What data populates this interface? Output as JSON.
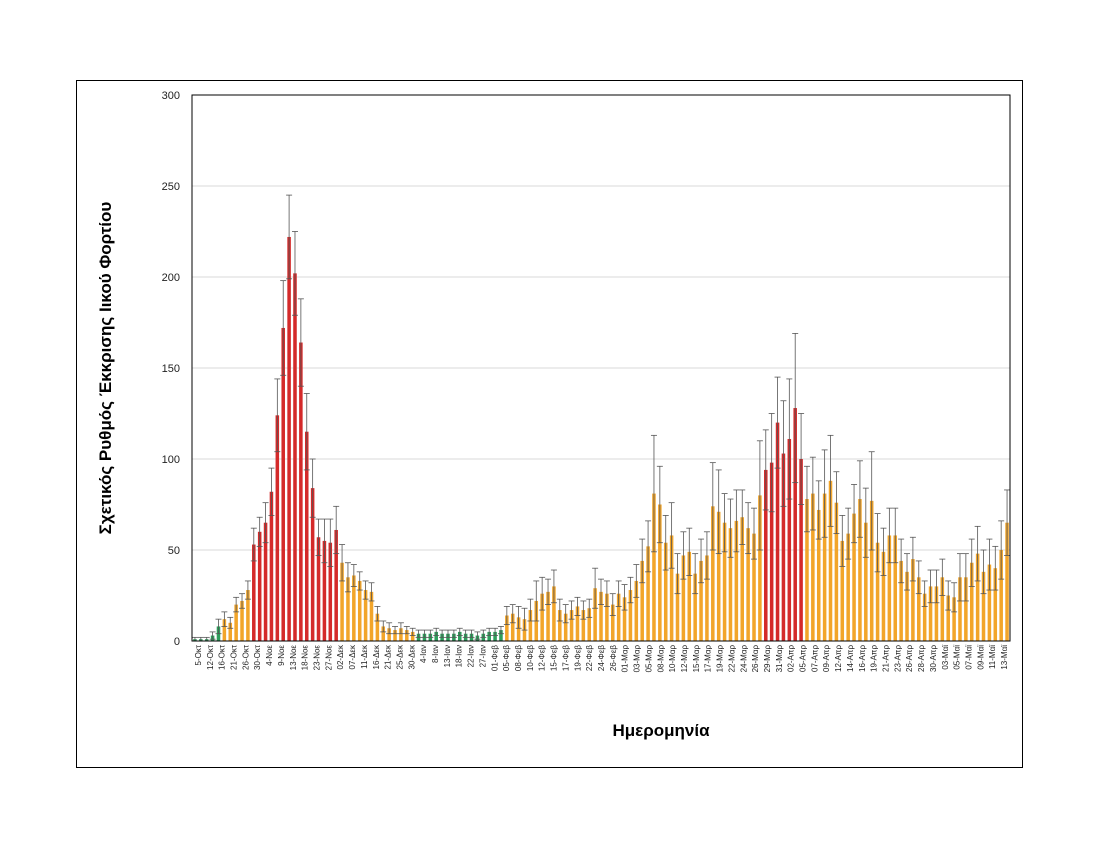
{
  "chart_data": {
    "type": "bar",
    "xlabel": "Ημερομηνία",
    "ylabel": "Σχετικός Ρυθμός Έκκρισης Ιικού Φορτίου",
    "ylim": [
      0,
      300
    ],
    "yticks": [
      0,
      50,
      100,
      150,
      200,
      250,
      300
    ],
    "grid": true,
    "colors": {
      "low": "#2e9e5b",
      "medium": "#f2a52a",
      "high": "#d42a2a",
      "errorbar": "#555555",
      "grid": "#d9d9d9"
    },
    "x_labels": [
      "5-Οκτ",
      "12-Οκτ",
      "16-Οκτ",
      "21-Οκτ",
      "26-Οκτ",
      "30-Οκτ",
      "4-Νοε",
      "9-Νοε",
      "13-Νοε",
      "18-Νοε",
      "23-Νοε",
      "27-Νοε",
      "02-Δεκ",
      "07-Δεκ",
      "11-Δεκ",
      "16-Δεκ",
      "21-Δεκ",
      "25-Δεκ",
      "30-Δεκ",
      "4-Ιαν",
      "8-Ιαν",
      "13-Ιαν",
      "18-Ιαν",
      "22-Ιαν",
      "27-Ιαν",
      "01-Φεβ",
      "05-Φεβ",
      "08-Φεβ",
      "10-Φεβ",
      "12-Φεβ",
      "15-Φεβ",
      "17-Φεβ",
      "19-Φεβ",
      "22-Φεβ",
      "24-Φεβ",
      "26-Φεβ",
      "01-Μαρ",
      "03-Μαρ",
      "05-Μαρ",
      "08-Μαρ",
      "10-Μαρ",
      "12-Μαρ",
      "15-Μαρ",
      "17-Μαρ",
      "19-Μαρ",
      "22-Μαρ",
      "24-Μαρ",
      "26-Μαρ",
      "29-Μαρ",
      "31-Μαρ",
      "02-Απρ",
      "05-Απρ",
      "07-Απρ",
      "09-Απρ",
      "12-Απρ",
      "14-Απρ",
      "16-Απρ",
      "19-Απρ",
      "21-Απρ",
      "23-Απρ",
      "26-Απρ",
      "28-Απρ",
      "30-Απρ",
      "03-Μαϊ",
      "05-Μαϊ",
      "07-Μαϊ",
      "09-Μαϊ",
      "11-Μαϊ",
      "13-Μαϊ"
    ],
    "values": [
      1,
      1,
      1,
      3,
      8,
      12,
      10,
      20,
      22,
      28,
      53,
      60,
      65,
      82,
      124,
      172,
      222,
      202,
      164,
      115,
      84,
      57,
      55,
      54,
      61,
      43,
      35,
      36,
      33,
      28,
      27,
      15,
      8,
      7,
      6,
      7,
      6,
      5,
      4,
      4,
      4,
      5,
      4,
      4,
      4,
      5,
      4,
      4,
      3,
      4,
      5,
      5,
      6,
      14,
      15,
      13,
      12,
      17,
      22,
      26,
      27,
      30,
      17,
      15,
      17,
      19,
      17,
      18,
      29,
      27,
      26,
      20,
      26,
      24,
      28,
      33,
      44,
      52,
      81,
      75,
      54,
      58,
      37,
      47,
      49,
      37,
      44,
      47,
      74,
      71,
      65,
      62,
      66,
      68,
      62,
      59,
      80,
      94,
      98,
      120,
      103,
      111,
      128,
      100,
      78,
      81,
      72,
      81,
      88,
      76,
      55,
      59,
      70,
      78,
      65,
      77,
      54,
      49,
      58,
      58,
      44,
      38,
      45,
      35,
      26,
      30,
      30,
      35,
      25,
      24,
      35,
      35,
      43,
      48,
      38,
      42,
      40,
      50,
      65
    ],
    "errors": [
      1,
      1,
      1,
      2,
      4,
      4,
      3,
      4,
      4,
      5,
      9,
      8,
      11,
      13,
      20,
      26,
      23,
      23,
      24,
      21,
      16,
      10,
      12,
      13,
      13,
      10,
      8,
      6,
      5,
      5,
      5,
      4,
      3,
      3,
      2,
      3,
      2,
      2,
      2,
      2,
      2,
      2,
      2,
      2,
      2,
      2,
      2,
      2,
      2,
      2,
      2,
      2,
      2,
      5,
      5,
      6,
      6,
      6,
      11,
      9,
      7,
      9,
      6,
      5,
      5,
      5,
      5,
      5,
      11,
      7,
      7,
      6,
      7,
      7,
      7,
      9,
      12,
      14,
      32,
      21,
      15,
      18,
      11,
      13,
      13,
      11,
      12,
      13,
      24,
      23,
      16,
      16,
      17,
      15,
      14,
      14,
      30,
      22,
      27,
      25,
      29,
      33,
      41,
      25,
      18,
      20,
      16,
      24,
      25,
      17,
      14,
      14,
      16,
      21,
      19,
      27,
      16,
      13,
      15,
      15,
      12,
      10,
      12,
      9,
      7,
      9,
      9,
      10,
      8,
      8,
      13,
      13,
      13,
      15,
      12,
      14,
      12,
      16,
      18
    ],
    "levels": [
      "L",
      "L",
      "L",
      "L",
      "L",
      "M",
      "M",
      "M",
      "M",
      "M",
      "H",
      "H",
      "H",
      "H",
      "H",
      "H",
      "H",
      "H",
      "H",
      "H",
      "H",
      "H",
      "H",
      "H",
      "H",
      "M",
      "M",
      "M",
      "M",
      "M",
      "M",
      "M",
      "M",
      "M",
      "M",
      "M",
      "M",
      "M",
      "L",
      "L",
      "L",
      "L",
      "L",
      "L",
      "L",
      "L",
      "L",
      "L",
      "L",
      "L",
      "L",
      "L",
      "L",
      "M",
      "M",
      "M",
      "M",
      "M",
      "M",
      "M",
      "M",
      "M",
      "M",
      "M",
      "M",
      "M",
      "M",
      "M",
      "M",
      "M",
      "M",
      "M",
      "M",
      "M",
      "M",
      "M",
      "M",
      "M",
      "M",
      "M",
      "M",
      "M",
      "M",
      "M",
      "M",
      "M",
      "M",
      "M",
      "M",
      "M",
      "M",
      "M",
      "M",
      "M",
      "M",
      "M",
      "M",
      "H",
      "H",
      "H",
      "H",
      "H",
      "H",
      "H",
      "M",
      "M",
      "M",
      "M",
      "M",
      "M",
      "M",
      "M",
      "M",
      "M",
      "M",
      "M",
      "M",
      "M",
      "M",
      "M",
      "M",
      "M",
      "M",
      "M",
      "M",
      "M",
      "M",
      "M",
      "M",
      "M",
      "M",
      "M",
      "M",
      "M",
      "M",
      "M",
      "M",
      "M",
      "M"
    ]
  }
}
